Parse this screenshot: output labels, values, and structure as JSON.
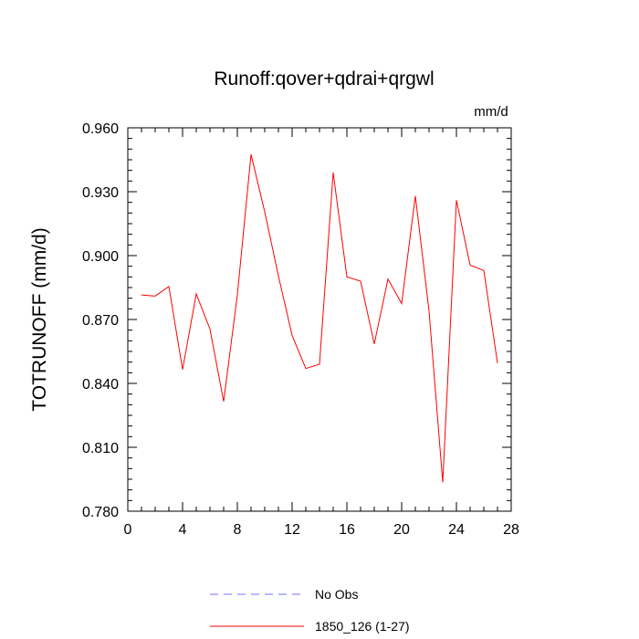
{
  "chart_data": {
    "type": "line",
    "title": "Runoff:qover+qdrai+qrgwl",
    "units": "mm/d",
    "ylabel": "TOTRUNOFF  (mm/d)",
    "xlabel": "",
    "xlim": [
      0,
      28
    ],
    "ylim": [
      0.78,
      0.96
    ],
    "xticks": [
      "0",
      "4",
      "8",
      "12",
      "16",
      "20",
      "24",
      "28"
    ],
    "yticks": [
      "0.780",
      "0.810",
      "0.840",
      "0.870",
      "0.900",
      "0.930",
      "0.960"
    ],
    "grid": false,
    "legend_position": "bottom",
    "series": [
      {
        "name": "1850_126 (1-27)",
        "color": "#ff0000",
        "x": [
          1,
          2,
          3,
          4,
          5,
          6,
          7,
          8,
          9,
          10,
          11,
          12,
          13,
          14,
          15,
          16,
          17,
          18,
          19,
          20,
          21,
          22,
          23,
          24,
          25,
          26,
          27
        ],
        "values": [
          0.8815,
          0.881,
          0.8855,
          0.8465,
          0.882,
          0.8655,
          0.8315,
          0.8815,
          0.9475,
          0.9205,
          0.8905,
          0.8625,
          0.847,
          0.849,
          0.939,
          0.89,
          0.888,
          0.8585,
          0.889,
          0.8775,
          0.928,
          0.874,
          0.7935,
          0.926,
          0.8955,
          0.893,
          0.8495
        ]
      }
    ],
    "legend": [
      {
        "label": "No Obs",
        "color": "#7070ff",
        "dash": "dashed"
      },
      {
        "label": "1850_126 (1-27)",
        "color": "#ff0000",
        "dash": "solid"
      }
    ]
  }
}
